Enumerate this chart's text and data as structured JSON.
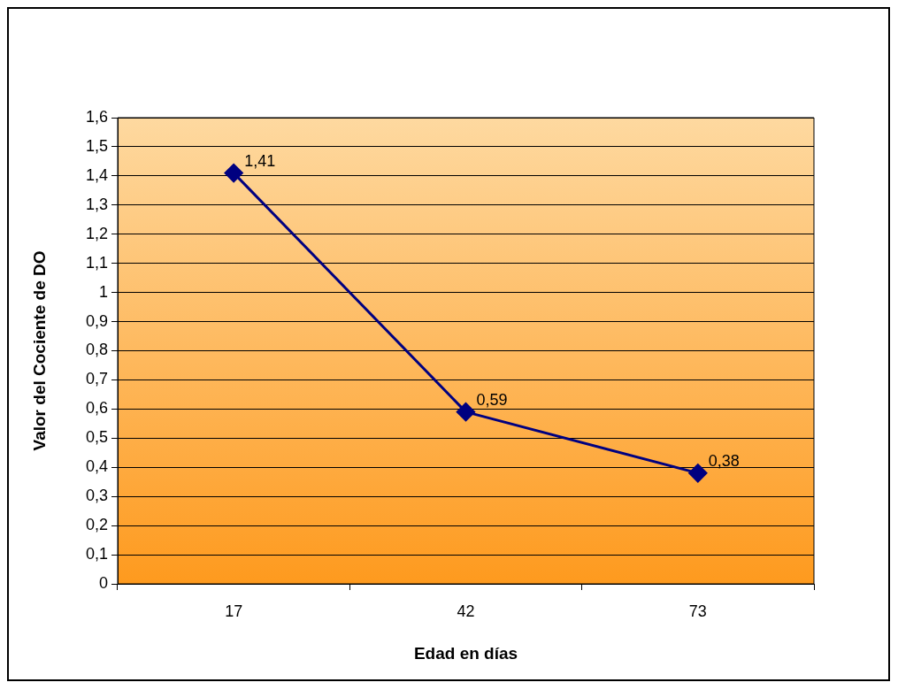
{
  "chart_data": {
    "type": "line",
    "xlabel": "Edad en días",
    "ylabel": "Valor del Cociente de DO",
    "categories": [
      "17",
      "42",
      "73"
    ],
    "series": [
      {
        "color": "#000080",
        "values": [
          1.41,
          0.59,
          0.38
        ],
        "value_labels": [
          "1,41",
          "0,59",
          "0,38"
        ]
      }
    ],
    "ylim": [
      0,
      1.6
    ],
    "yticks": [
      0,
      {
        "value": 0.1,
        "label": "0,1"
      },
      {
        "value": 0.2,
        "label": "0,2"
      },
      {
        "value": 0.3,
        "label": "0,3"
      },
      {
        "value": 0.4,
        "label": "0,4"
      },
      {
        "value": 0.5,
        "label": "0,5"
      },
      {
        "value": 0.6,
        "label": "0,6"
      },
      {
        "value": 0.7,
        "label": "0,7"
      },
      {
        "value": 0.8,
        "label": "0,8"
      },
      {
        "value": 0.9,
        "label": "0,9"
      },
      1,
      {
        "value": 1.1,
        "label": "1,1"
      },
      {
        "value": 1.2,
        "label": "1,2"
      },
      {
        "value": 1.3,
        "label": "1,3"
      },
      {
        "value": 1.4,
        "label": "1,4"
      },
      {
        "value": 1.5,
        "label": "1,5"
      },
      {
        "value": 1.6,
        "label": "1,6"
      }
    ],
    "grid": "y",
    "legend": false,
    "marker": "diamond",
    "line_style": "solid"
  }
}
